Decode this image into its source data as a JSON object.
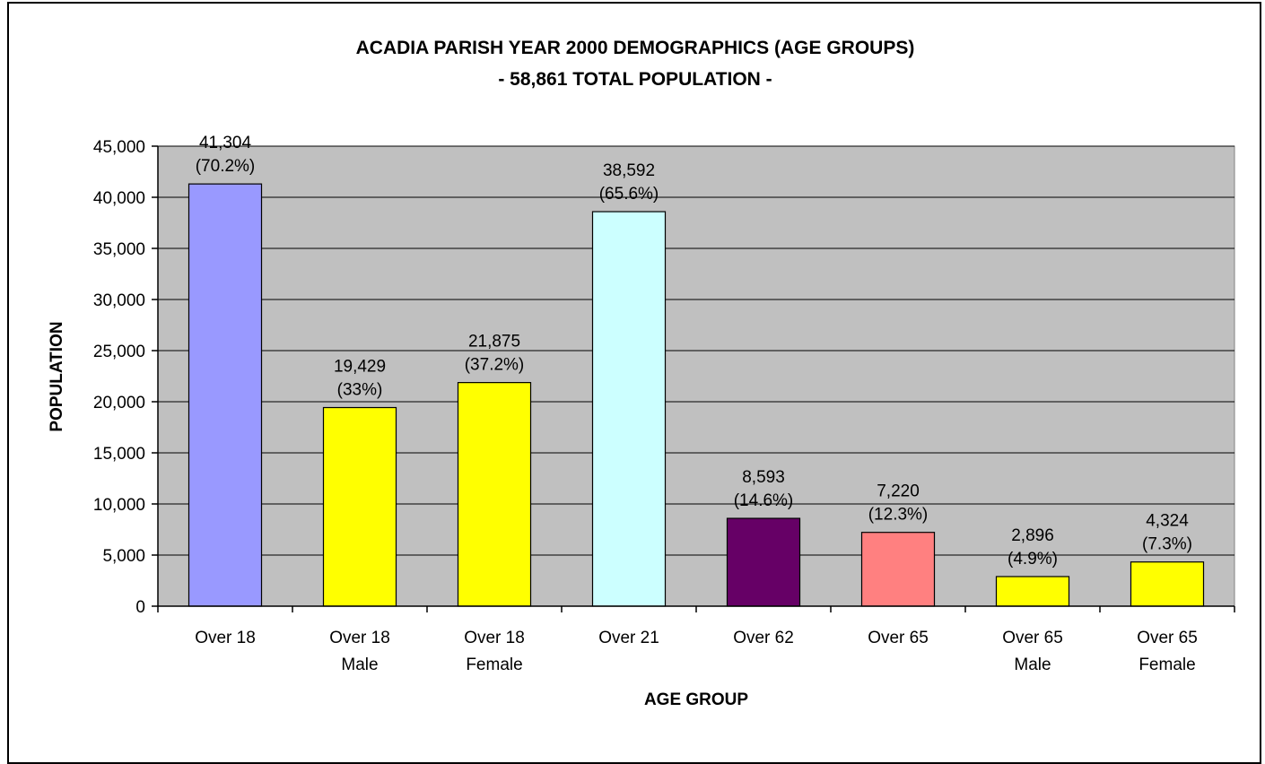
{
  "chart_data": {
    "type": "bar",
    "title": "ACADIA PARISH YEAR 2000 DEMOGRAPHICS (AGE GROUPS)",
    "subtitle": "- 58,861 TOTAL POPULATION -",
    "xlabel": "AGE GROUP",
    "ylabel": "POPULATION",
    "ylim": [
      0,
      45000
    ],
    "ytick_step": 5000,
    "yticks": [
      "0",
      "5,000",
      "10,000",
      "15,000",
      "20,000",
      "25,000",
      "30,000",
      "35,000",
      "40,000",
      "45,000"
    ],
    "grid": true,
    "legend": "none",
    "plot_background": "#c0c0c0",
    "categories": [
      [
        "Over 18"
      ],
      [
        "Over 18",
        "Male"
      ],
      [
        "Over 18",
        "Female"
      ],
      [
        "Over 21"
      ],
      [
        "Over 62"
      ],
      [
        "Over 65"
      ],
      [
        "Over 65",
        "Male"
      ],
      [
        "Over 65",
        "Female"
      ]
    ],
    "values": [
      41304,
      19429,
      21875,
      38592,
      8593,
      7220,
      2896,
      4324
    ],
    "data_labels": [
      [
        "41,304",
        "(70.2%)"
      ],
      [
        "19,429",
        "(33%)"
      ],
      [
        "21,875",
        "(37.2%)"
      ],
      [
        "38,592",
        "(65.6%)"
      ],
      [
        "8,593",
        "(14.6%)"
      ],
      [
        "7,220",
        "(12.3%)"
      ],
      [
        "2,896",
        "(4.9%)"
      ],
      [
        "4,324",
        "(7.3%)"
      ]
    ],
    "colors": [
      "#9999ff",
      "#ffff00",
      "#ffff00",
      "#ccffff",
      "#660066",
      "#ff8080",
      "#ffff00",
      "#ffff00"
    ]
  }
}
